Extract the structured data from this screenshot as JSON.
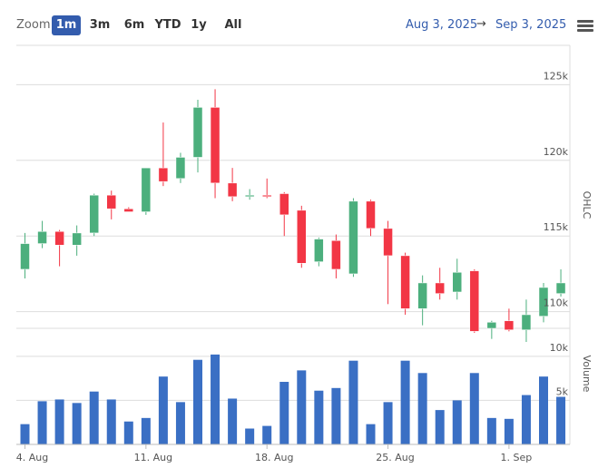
{
  "toolbar": {
    "zoom_label": "Zoom",
    "ranges": [
      "1m",
      "3m",
      "6m",
      "YTD",
      "1y",
      "All"
    ],
    "active_range": "1m",
    "date_from": "Aug 3, 2025",
    "date_arrow": "→",
    "date_to": "Sep 3, 2025",
    "menu_icon": "hamburger-menu-icon"
  },
  "colors": {
    "up": "#4caf7d",
    "down": "#f23645",
    "volume": "#3a6fc4",
    "accent": "#335cad",
    "grid": "#dddddd"
  },
  "chart_data": {
    "type": "candlestick",
    "price_axis": {
      "title": "OHLC",
      "ticks": [
        110000,
        115000,
        120000,
        125000
      ],
      "tick_labels": [
        "110k",
        "115k",
        "120k",
        "125k"
      ],
      "range": [
        109200,
        127000
      ]
    },
    "volume_axis": {
      "title": "Volume",
      "ticks": [
        5000,
        10000
      ],
      "tick_labels": [
        "5k",
        "10k"
      ],
      "range": [
        0,
        10600
      ]
    },
    "x_ticks": [
      "4. Aug",
      "11. Aug",
      "18. Aug",
      "25. Aug",
      "1. Sep"
    ],
    "grid": true,
    "series": [
      {
        "date": "2025-08-04",
        "open": 112800,
        "high": 115200,
        "low": 112200,
        "close": 114500,
        "volume": 2300
      },
      {
        "date": "2025-08-05",
        "open": 114500,
        "high": 116000,
        "low": 114200,
        "close": 115300,
        "volume": 4900
      },
      {
        "date": "2025-08-06",
        "open": 115300,
        "high": 115400,
        "low": 113000,
        "close": 114400,
        "volume": 5100
      },
      {
        "date": "2025-08-07",
        "open": 114400,
        "high": 115700,
        "low": 113700,
        "close": 115200,
        "volume": 4700
      },
      {
        "date": "2025-08-08",
        "open": 115200,
        "high": 117800,
        "low": 115000,
        "close": 117700,
        "volume": 6000
      },
      {
        "date": "2025-08-09",
        "open": 117700,
        "high": 118000,
        "low": 116100,
        "close": 116800,
        "volume": 5100
      },
      {
        "date": "2025-08-10",
        "open": 116800,
        "high": 116900,
        "low": 116600,
        "close": 116600,
        "volume": 2600
      },
      {
        "date": "2025-08-11",
        "open": 116600,
        "high": 119500,
        "low": 116400,
        "close": 119500,
        "volume": 3000
      },
      {
        "date": "2025-08-12",
        "open": 119500,
        "high": 122500,
        "low": 118300,
        "close": 118600,
        "volume": 7700
      },
      {
        "date": "2025-08-13",
        "open": 118800,
        "high": 120500,
        "low": 118500,
        "close": 120200,
        "volume": 4800
      },
      {
        "date": "2025-08-14",
        "open": 120200,
        "high": 124000,
        "low": 119200,
        "close": 123500,
        "volume": 9600
      },
      {
        "date": "2025-08-15",
        "open": 123500,
        "high": 124700,
        "low": 117500,
        "close": 118500,
        "volume": 10200
      },
      {
        "date": "2025-08-16",
        "open": 118500,
        "high": 119500,
        "low": 117300,
        "close": 117600,
        "volume": 5200
      },
      {
        "date": "2025-08-17",
        "open": 117600,
        "high": 118100,
        "low": 117400,
        "close": 117700,
        "volume": 1800
      },
      {
        "date": "2025-08-18",
        "open": 117700,
        "high": 118800,
        "low": 117500,
        "close": 117600,
        "volume": 2100
      },
      {
        "date": "2025-08-19",
        "open": 117800,
        "high": 117900,
        "low": 115000,
        "close": 116400,
        "volume": 7100
      },
      {
        "date": "2025-08-20",
        "open": 116700,
        "high": 117000,
        "low": 112900,
        "close": 113200,
        "volume": 8400
      },
      {
        "date": "2025-08-21",
        "open": 113300,
        "high": 114900,
        "low": 113000,
        "close": 114800,
        "volume": 6100
      },
      {
        "date": "2025-08-22",
        "open": 114700,
        "high": 115100,
        "low": 112200,
        "close": 112800,
        "volume": 6400
      },
      {
        "date": "2025-08-23",
        "open": 112500,
        "high": 117500,
        "low": 112300,
        "close": 117300,
        "volume": 9500
      },
      {
        "date": "2025-08-24",
        "open": 117300,
        "high": 117400,
        "low": 115000,
        "close": 115500,
        "volume": 2300
      },
      {
        "date": "2025-08-25",
        "open": 115500,
        "high": 116000,
        "low": 110500,
        "close": 113700,
        "volume": 4800
      },
      {
        "date": "2025-08-26",
        "open": 113700,
        "high": 113900,
        "low": 109800,
        "close": 110200,
        "volume": 9500
      },
      {
        "date": "2025-08-27",
        "open": 110200,
        "high": 112400,
        "low": 109100,
        "close": 111900,
        "volume": 8100
      },
      {
        "date": "2025-08-28",
        "open": 111900,
        "high": 112900,
        "low": 110800,
        "close": 111200,
        "volume": 3900
      },
      {
        "date": "2025-08-29",
        "open": 111300,
        "high": 113500,
        "low": 110800,
        "close": 112600,
        "volume": 5000
      },
      {
        "date": "2025-08-30",
        "open": 112700,
        "high": 112800,
        "low": 108600,
        "close": 108700,
        "volume": 8100
      },
      {
        "date": "2025-08-31",
        "open": 108900,
        "high": 109400,
        "low": 108200,
        "close": 109300,
        "volume": 3000
      },
      {
        "date": "2025-09-01",
        "open": 109400,
        "high": 110200,
        "low": 108700,
        "close": 108800,
        "volume": 2900
      },
      {
        "date": "2025-09-02",
        "open": 108800,
        "high": 110800,
        "low": 108000,
        "close": 109800,
        "volume": 5600
      },
      {
        "date": "2025-09-03",
        "open": 109700,
        "high": 111900,
        "low": 109300,
        "close": 111600,
        "volume": 7700
      },
      {
        "date": "2025-09-04",
        "open": 111200,
        "high": 112800,
        "low": 111000,
        "close": 111900,
        "volume": 5400
      }
    ]
  }
}
